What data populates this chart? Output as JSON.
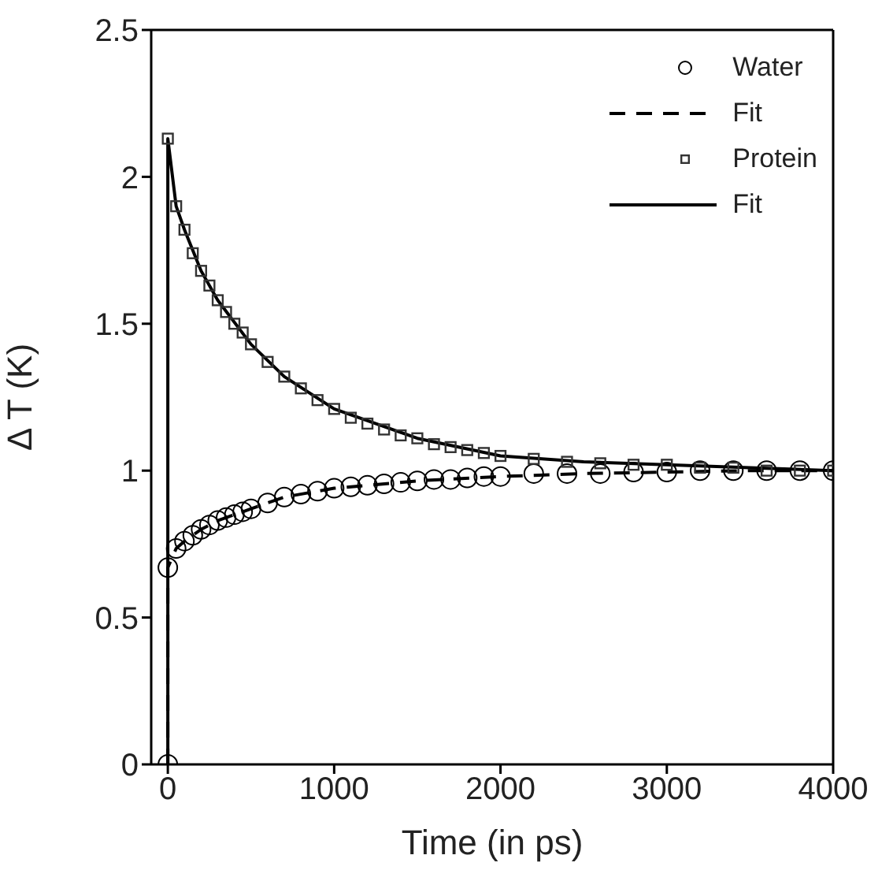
{
  "chart_data": {
    "type": "scatter",
    "xlabel": "Time (in ps)",
    "ylabel": "Δ T (K)",
    "xlim": [
      -100,
      4000
    ],
    "ylim": [
      0,
      2.5
    ],
    "xticks": [
      0,
      1000,
      2000,
      3000,
      4000
    ],
    "yticks": [
      0,
      0.5,
      1,
      1.5,
      2,
      2.5
    ],
    "legend": "top right",
    "series": [
      {
        "name": "Water",
        "marker": "circle",
        "color": "#000000",
        "x": [
          0,
          0,
          50,
          100,
          150,
          200,
          250,
          300,
          350,
          400,
          450,
          500,
          600,
          700,
          800,
          900,
          1000,
          1100,
          1200,
          1300,
          1400,
          1500,
          1600,
          1700,
          1800,
          1900,
          2000,
          2200,
          2400,
          2600,
          2800,
          3000,
          3200,
          3400,
          3600,
          3800,
          4000
        ],
        "values": [
          0,
          0.67,
          0.735,
          0.76,
          0.78,
          0.8,
          0.815,
          0.83,
          0.84,
          0.85,
          0.86,
          0.87,
          0.89,
          0.91,
          0.92,
          0.93,
          0.94,
          0.945,
          0.95,
          0.955,
          0.96,
          0.965,
          0.97,
          0.97,
          0.975,
          0.98,
          0.98,
          0.99,
          0.99,
          0.99,
          0.995,
          0.995,
          1,
          1,
          1,
          1,
          1
        ]
      },
      {
        "name": "Fit",
        "type": "line",
        "marker": "none",
        "line_style": "dashed",
        "color": "#000000",
        "x": [
          0,
          0,
          50,
          100,
          200,
          300,
          500,
          700,
          1000,
          1500,
          2000,
          2500,
          3000,
          3500,
          4000
        ],
        "values": [
          0,
          0.67,
          0.735,
          0.76,
          0.8,
          0.83,
          0.87,
          0.91,
          0.94,
          0.965,
          0.98,
          0.99,
          0.995,
          1,
          1
        ]
      },
      {
        "name": "Protein",
        "marker": "square",
        "color": "#333333",
        "x": [
          0,
          50,
          100,
          150,
          200,
          250,
          300,
          350,
          400,
          450,
          500,
          600,
          700,
          800,
          900,
          1000,
          1100,
          1200,
          1300,
          1400,
          1500,
          1600,
          1700,
          1800,
          1900,
          2000,
          2200,
          2400,
          2600,
          2800,
          3000,
          3200,
          3400,
          3600,
          3800,
          4000
        ],
        "values": [
          2.13,
          1.9,
          1.82,
          1.74,
          1.68,
          1.63,
          1.58,
          1.54,
          1.5,
          1.47,
          1.43,
          1.37,
          1.32,
          1.28,
          1.24,
          1.21,
          1.18,
          1.16,
          1.14,
          1.12,
          1.11,
          1.09,
          1.08,
          1.07,
          1.06,
          1.05,
          1.04,
          1.03,
          1.025,
          1.02,
          1.02,
          1.01,
          1.01,
          1,
          1,
          1
        ]
      },
      {
        "name": "Fit",
        "type": "line",
        "marker": "none",
        "line_style": "solid",
        "color": "#000000",
        "x": [
          0,
          0,
          50,
          100,
          200,
          300,
          500,
          700,
          1000,
          1500,
          2000,
          2500,
          3000,
          3500,
          4000
        ],
        "values": [
          0,
          2.13,
          1.9,
          1.82,
          1.68,
          1.58,
          1.43,
          1.32,
          1.21,
          1.11,
          1.05,
          1.03,
          1.02,
          1.01,
          1
        ]
      }
    ]
  }
}
